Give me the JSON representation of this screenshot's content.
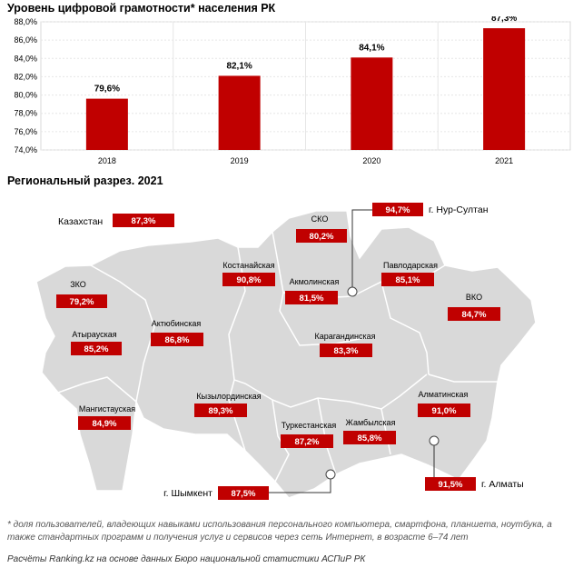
{
  "chart_title": "Уровень цифровой грамотности* населения РК",
  "chart_data": {
    "type": "bar",
    "categories": [
      "2018",
      "2019",
      "2020",
      "2021"
    ],
    "values": [
      79.6,
      82.1,
      84.1,
      87.3
    ],
    "value_labels": [
      "79,6%",
      "82,1%",
      "84,1%",
      "87,3%"
    ],
    "title": "Уровень цифровой грамотности* населения РК",
    "xlabel": "",
    "ylabel": "",
    "ylim": [
      74,
      88
    ],
    "yticks": [
      74,
      76,
      78,
      80,
      82,
      84,
      86,
      88
    ],
    "ytick_labels": [
      "74,0%",
      "76,0%",
      "78,0%",
      "80,0%",
      "82,0%",
      "84,0%",
      "86,0%",
      "88,0%"
    ],
    "grid": true,
    "bar_color": "#c00000"
  },
  "regional": {
    "title": "Региональный разрез. 2021",
    "kazakhstan": {
      "name": "Казахстан",
      "value": "87,3%"
    },
    "regions": [
      {
        "name": "СКО",
        "value": "80,2%"
      },
      {
        "name": "Костанайская",
        "value": "90,8%"
      },
      {
        "name": "Акмолинская",
        "value": "81,5%"
      },
      {
        "name": "Павлодарская",
        "value": "85,1%"
      },
      {
        "name": "ЗКО",
        "value": "79,2%"
      },
      {
        "name": "ВКО",
        "value": "84,7%"
      },
      {
        "name": "Атырауская",
        "value": "85,2%"
      },
      {
        "name": "Актюбинская",
        "value": "86,8%"
      },
      {
        "name": "Карагандинская",
        "value": "83,3%"
      },
      {
        "name": "Мангистауская",
        "value": "84,9%"
      },
      {
        "name": "Кызылординская",
        "value": "89,3%"
      },
      {
        "name": "Алматинская",
        "value": "91,0%"
      },
      {
        "name": "Туркестанская",
        "value": "87,2%"
      },
      {
        "name": "Жамбылская",
        "value": "85,8%"
      }
    ],
    "cities": [
      {
        "name": "г. Нур-Султан",
        "value": "94,7%"
      },
      {
        "name": "г. Алматы",
        "value": "91,5%"
      },
      {
        "name": "г. Шымкент",
        "value": "87,5%"
      }
    ],
    "label_color": "#c00000"
  },
  "footnote": "* доля пользователей, владеющих навыками использования персонального компьютера, смартфона, планшета, ноутбука, а также стандартных программ и получения услуг и сервисов через сеть Интернет, в возрасте 6–74 лет",
  "source": "Расчёты Ranking.kz на основе данных Бюро национальной статистики АСПиР РК"
}
